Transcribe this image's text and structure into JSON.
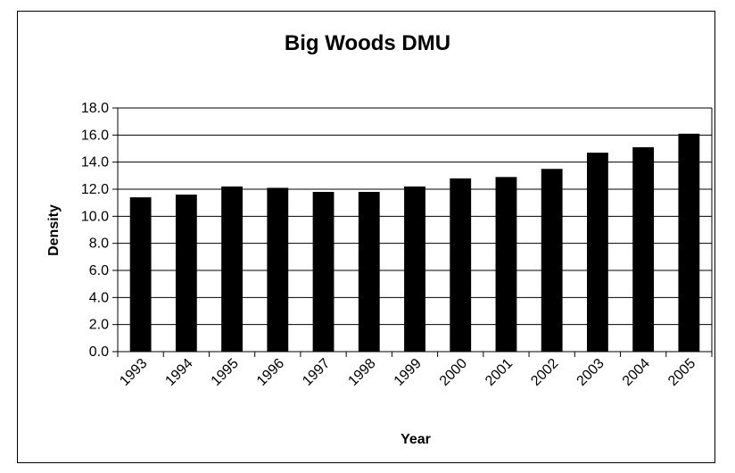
{
  "chart_data": {
    "type": "bar",
    "title": "Big Woods DMU",
    "xlabel": "Year",
    "ylabel": "Density",
    "categories": [
      "1993",
      "1994",
      "1995",
      "1996",
      "1997",
      "1998",
      "1999",
      "2000",
      "2001",
      "2002",
      "2003",
      "2004",
      "2005"
    ],
    "values": [
      11.4,
      11.6,
      12.2,
      12.1,
      11.8,
      11.8,
      12.2,
      12.8,
      12.9,
      13.5,
      14.7,
      15.1,
      16.1
    ],
    "ylim": [
      0,
      18
    ],
    "yticks": [
      "0.0",
      "2.0",
      "4.0",
      "6.0",
      "8.0",
      "10.0",
      "12.0",
      "14.0",
      "16.0",
      "18.0"
    ],
    "grid": true,
    "legend": "none",
    "bar_color": "#000000"
  }
}
